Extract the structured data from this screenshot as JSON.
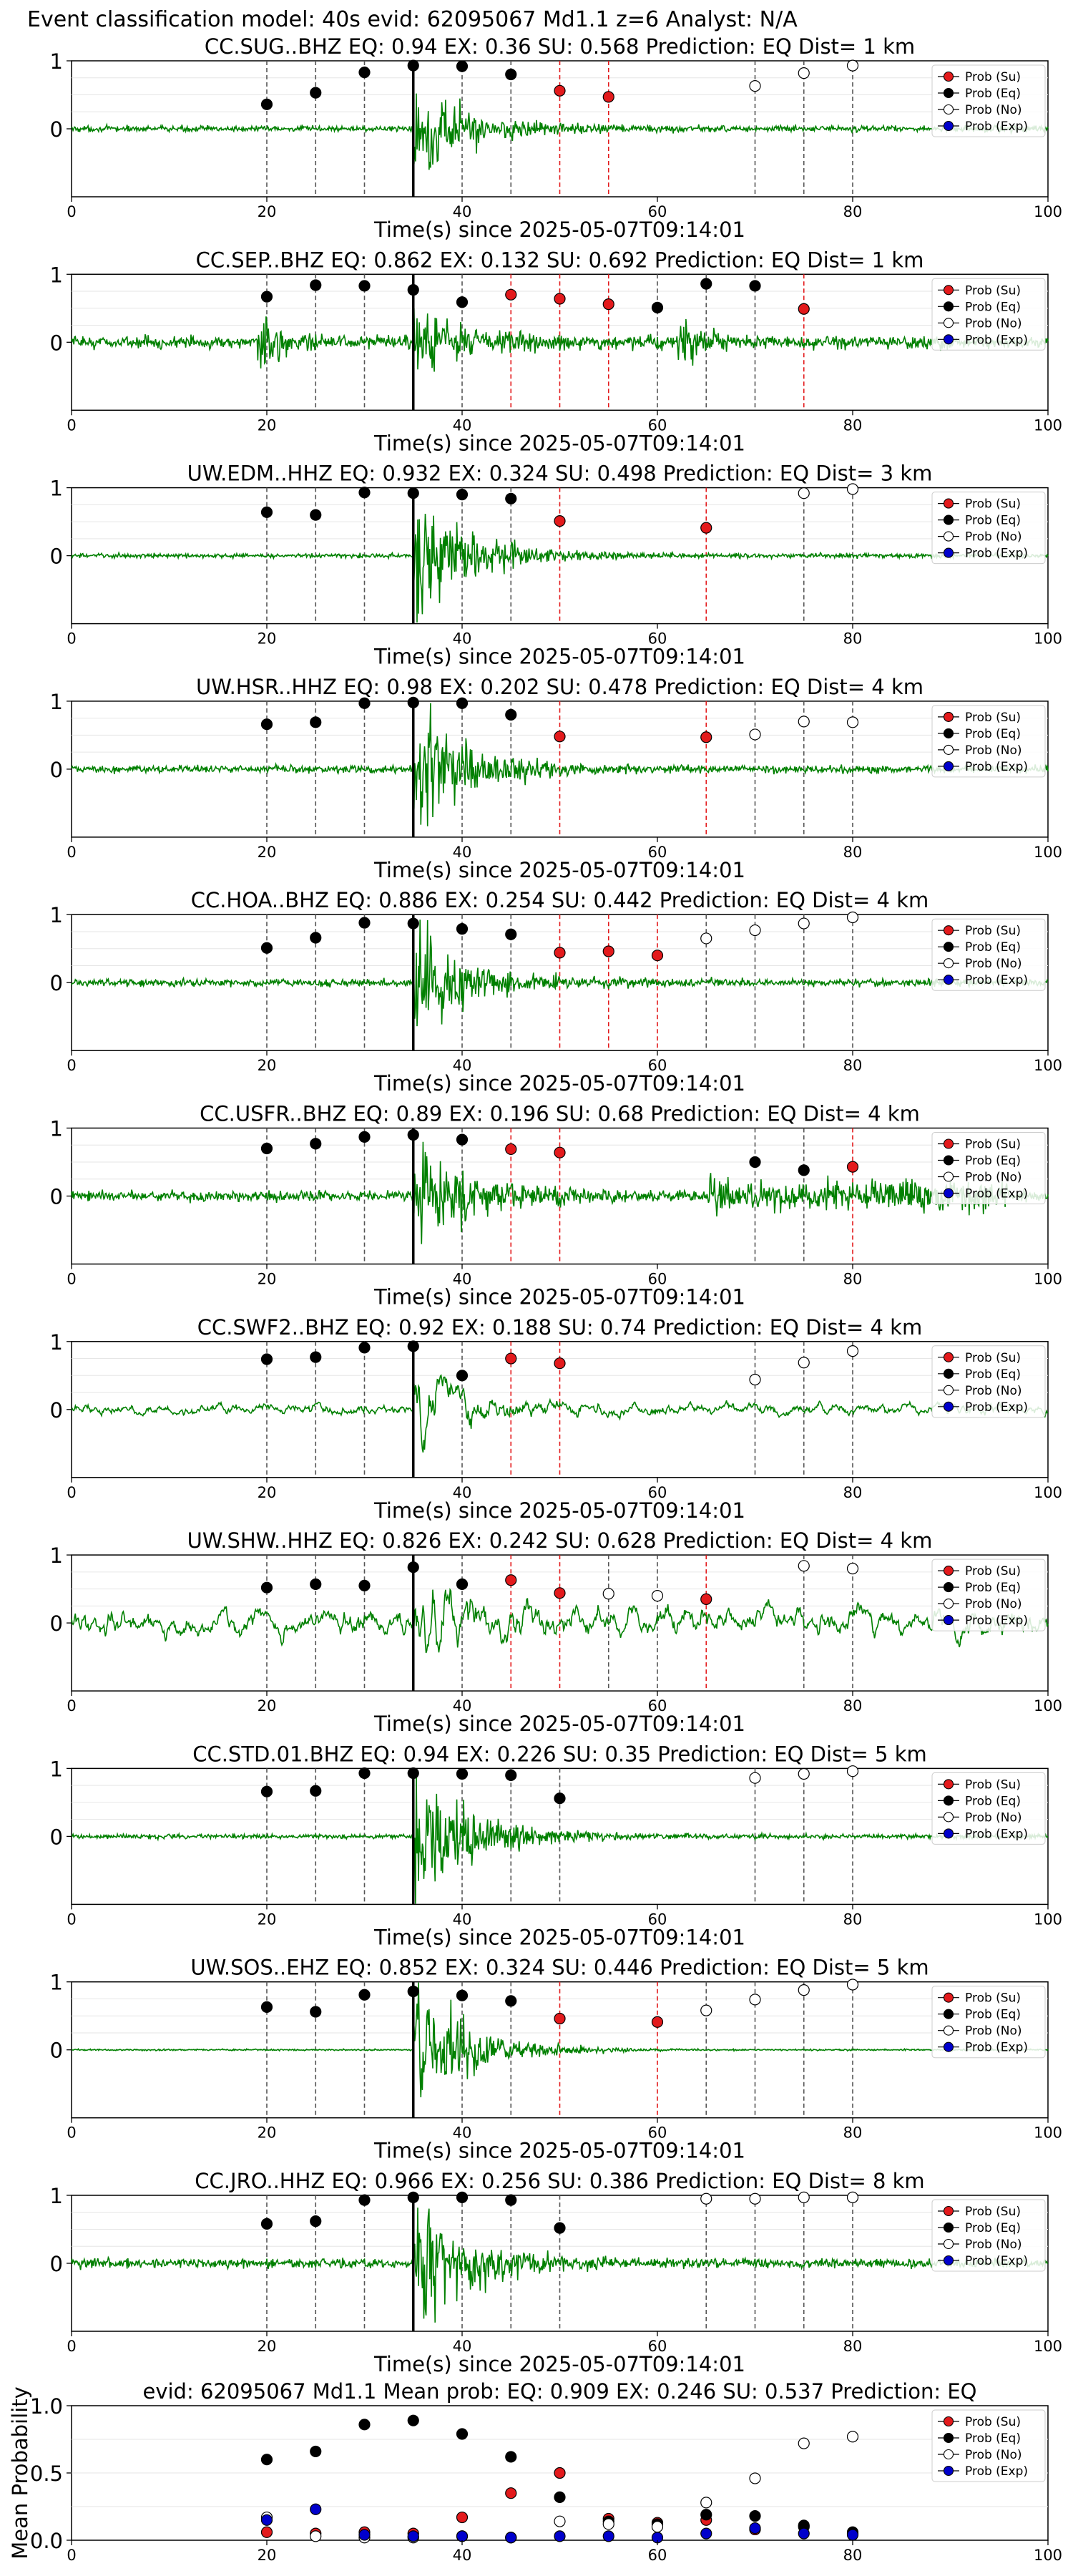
{
  "figure_title": "Event classification model: 40s evid: 62095067 Md1.1 z=6 Analyst: N/A",
  "legend_labels": [
    "Prob (Su)",
    "Prob (Eq)",
    "Prob (No)",
    "Prob (Exp)"
  ],
  "colors": {
    "waveform": "#008000",
    "su": "#e31a1c",
    "eq": "#000000",
    "no": "#ffffff",
    "exp": "#0000cc",
    "su_line": "#e31a1c",
    "eq_line": "#555555",
    "arrival": "#000000"
  },
  "xlabel": "Time(s) since 2025-05-07T09:14:01",
  "chart_data": [
    {
      "type": "scatter",
      "title": "CC.SUG..BHZ   EQ: 0.94  EX: 0.36  SU: 0.568   Prediction: EQ    Dist= 1 km",
      "xlim": [
        0,
        100
      ],
      "ylim": [
        -1,
        1
      ],
      "xticks": [
        0,
        20,
        40,
        60,
        80,
        100
      ],
      "yticks": [
        0,
        1
      ],
      "arrival": 35,
      "waveform_amp": 0.7,
      "noise_amp": 0.04,
      "points": [
        {
          "x": 20,
          "y": 0.36,
          "c": "eq"
        },
        {
          "x": 25,
          "y": 0.53,
          "c": "eq"
        },
        {
          "x": 30,
          "y": 0.83,
          "c": "eq"
        },
        {
          "x": 35,
          "y": 0.93,
          "c": "eq"
        },
        {
          "x": 40,
          "y": 0.92,
          "c": "eq"
        },
        {
          "x": 45,
          "y": 0.8,
          "c": "eq"
        },
        {
          "x": 50,
          "y": 0.56,
          "c": "su"
        },
        {
          "x": 55,
          "y": 0.47,
          "c": "su"
        },
        {
          "x": 70,
          "y": 0.63,
          "c": "no"
        },
        {
          "x": 75,
          "y": 0.82,
          "c": "no"
        },
        {
          "x": 80,
          "y": 0.93,
          "c": "no"
        }
      ]
    },
    {
      "type": "scatter",
      "title": "CC.SEP..BHZ   EQ: 0.862  EX: 0.132  SU: 0.692   Prediction: EQ    Dist= 1 km",
      "xlim": [
        0,
        100
      ],
      "ylim": [
        -1,
        1
      ],
      "xticks": [
        0,
        20,
        40,
        60,
        80,
        100
      ],
      "yticks": [
        0,
        1
      ],
      "arrival": 35,
      "waveform_amp": 0.55,
      "noise_amp": 0.08,
      "points": [
        {
          "x": 20,
          "y": 0.67,
          "c": "eq"
        },
        {
          "x": 25,
          "y": 0.84,
          "c": "eq"
        },
        {
          "x": 30,
          "y": 0.83,
          "c": "eq"
        },
        {
          "x": 35,
          "y": 0.77,
          "c": "eq"
        },
        {
          "x": 40,
          "y": 0.59,
          "c": "eq"
        },
        {
          "x": 45,
          "y": 0.7,
          "c": "su"
        },
        {
          "x": 50,
          "y": 0.64,
          "c": "su"
        },
        {
          "x": 55,
          "y": 0.56,
          "c": "su"
        },
        {
          "x": 60,
          "y": 0.51,
          "c": "eq"
        },
        {
          "x": 65,
          "y": 0.86,
          "c": "eq"
        },
        {
          "x": 70,
          "y": 0.83,
          "c": "eq"
        },
        {
          "x": 75,
          "y": 0.49,
          "c": "su"
        }
      ]
    },
    {
      "type": "scatter",
      "title": "UW.EDM..HHZ   EQ: 0.932  EX: 0.324  SU: 0.498   Prediction: EQ    Dist= 3 km",
      "xlim": [
        0,
        100
      ],
      "ylim": [
        -1,
        1
      ],
      "xticks": [
        0,
        20,
        40,
        60,
        80,
        100
      ],
      "yticks": [
        0,
        1
      ],
      "arrival": 35,
      "waveform_amp": 0.95,
      "noise_amp": 0.03,
      "points": [
        {
          "x": 20,
          "y": 0.64,
          "c": "eq"
        },
        {
          "x": 25,
          "y": 0.6,
          "c": "eq"
        },
        {
          "x": 30,
          "y": 0.93,
          "c": "eq"
        },
        {
          "x": 35,
          "y": 0.92,
          "c": "eq"
        },
        {
          "x": 40,
          "y": 0.9,
          "c": "eq"
        },
        {
          "x": 45,
          "y": 0.84,
          "c": "eq"
        },
        {
          "x": 50,
          "y": 0.51,
          "c": "su"
        },
        {
          "x": 65,
          "y": 0.41,
          "c": "su"
        },
        {
          "x": 75,
          "y": 0.92,
          "c": "no"
        },
        {
          "x": 80,
          "y": 0.98,
          "c": "no"
        }
      ]
    },
    {
      "type": "scatter",
      "title": "UW.HSR..HHZ   EQ: 0.98  EX: 0.202  SU: 0.478   Prediction: EQ    Dist= 4 km",
      "xlim": [
        0,
        100
      ],
      "ylim": [
        -1,
        1
      ],
      "xticks": [
        0,
        20,
        40,
        60,
        80,
        100
      ],
      "yticks": [
        0,
        1
      ],
      "arrival": 35,
      "waveform_amp": 0.85,
      "noise_amp": 0.05,
      "points": [
        {
          "x": 20,
          "y": 0.66,
          "c": "eq"
        },
        {
          "x": 25,
          "y": 0.69,
          "c": "eq"
        },
        {
          "x": 30,
          "y": 0.97,
          "c": "eq"
        },
        {
          "x": 35,
          "y": 0.98,
          "c": "eq"
        },
        {
          "x": 40,
          "y": 0.97,
          "c": "eq"
        },
        {
          "x": 45,
          "y": 0.8,
          "c": "eq"
        },
        {
          "x": 50,
          "y": 0.48,
          "c": "su"
        },
        {
          "x": 65,
          "y": 0.47,
          "c": "su"
        },
        {
          "x": 70,
          "y": 0.51,
          "c": "no"
        },
        {
          "x": 75,
          "y": 0.7,
          "c": "no"
        },
        {
          "x": 80,
          "y": 0.69,
          "c": "no"
        }
      ]
    },
    {
      "type": "scatter",
      "title": "CC.HOA..BHZ   EQ: 0.886  EX: 0.254  SU: 0.442   Prediction: EQ    Dist= 4 km",
      "xlim": [
        0,
        100
      ],
      "ylim": [
        -1,
        1
      ],
      "xticks": [
        0,
        20,
        40,
        60,
        80,
        100
      ],
      "yticks": [
        0,
        1
      ],
      "arrival": 35,
      "waveform_amp": 0.8,
      "noise_amp": 0.05,
      "points": [
        {
          "x": 20,
          "y": 0.51,
          "c": "eq"
        },
        {
          "x": 25,
          "y": 0.66,
          "c": "eq"
        },
        {
          "x": 30,
          "y": 0.88,
          "c": "eq"
        },
        {
          "x": 35,
          "y": 0.87,
          "c": "eq"
        },
        {
          "x": 40,
          "y": 0.79,
          "c": "eq"
        },
        {
          "x": 45,
          "y": 0.71,
          "c": "eq"
        },
        {
          "x": 50,
          "y": 0.44,
          "c": "su"
        },
        {
          "x": 55,
          "y": 0.46,
          "c": "su"
        },
        {
          "x": 60,
          "y": 0.4,
          "c": "su"
        },
        {
          "x": 65,
          "y": 0.65,
          "c": "no"
        },
        {
          "x": 70,
          "y": 0.77,
          "c": "no"
        },
        {
          "x": 75,
          "y": 0.87,
          "c": "no"
        },
        {
          "x": 80,
          "y": 0.96,
          "c": "no"
        }
      ]
    },
    {
      "type": "scatter",
      "title": "CC.USFR..BHZ   EQ: 0.89  EX: 0.196  SU: 0.68   Prediction: EQ    Dist= 4 km",
      "xlim": [
        0,
        100
      ],
      "ylim": [
        -1,
        1
      ],
      "xticks": [
        0,
        20,
        40,
        60,
        80,
        100
      ],
      "yticks": [
        0,
        1
      ],
      "arrival": 35,
      "waveform_amp": 0.75,
      "noise_amp": 0.07,
      "points": [
        {
          "x": 20,
          "y": 0.7,
          "c": "eq"
        },
        {
          "x": 25,
          "y": 0.77,
          "c": "eq"
        },
        {
          "x": 30,
          "y": 0.87,
          "c": "eq"
        },
        {
          "x": 35,
          "y": 0.9,
          "c": "eq"
        },
        {
          "x": 40,
          "y": 0.83,
          "c": "eq"
        },
        {
          "x": 45,
          "y": 0.69,
          "c": "su"
        },
        {
          "x": 50,
          "y": 0.64,
          "c": "su"
        },
        {
          "x": 70,
          "y": 0.5,
          "c": "eq"
        },
        {
          "x": 75,
          "y": 0.38,
          "c": "eq"
        },
        {
          "x": 80,
          "y": 0.43,
          "c": "su"
        }
      ]
    },
    {
      "type": "scatter",
      "title": "CC.SWF2..BHZ   EQ: 0.92  EX: 0.188  SU: 0.74   Prediction: EQ    Dist= 4 km",
      "xlim": [
        0,
        100
      ],
      "ylim": [
        -1,
        1
      ],
      "xticks": [
        0,
        20,
        40,
        60,
        80,
        100
      ],
      "yticks": [
        0,
        1
      ],
      "arrival": 35,
      "waveform_amp": 0.8,
      "noise_amp": 0.12,
      "points": [
        {
          "x": 20,
          "y": 0.74,
          "c": "eq"
        },
        {
          "x": 25,
          "y": 0.77,
          "c": "eq"
        },
        {
          "x": 30,
          "y": 0.91,
          "c": "eq"
        },
        {
          "x": 35,
          "y": 0.93,
          "c": "eq"
        },
        {
          "x": 40,
          "y": 0.5,
          "c": "eq"
        },
        {
          "x": 45,
          "y": 0.75,
          "c": "su"
        },
        {
          "x": 50,
          "y": 0.68,
          "c": "su"
        },
        {
          "x": 70,
          "y": 0.44,
          "c": "no"
        },
        {
          "x": 75,
          "y": 0.69,
          "c": "no"
        },
        {
          "x": 80,
          "y": 0.86,
          "c": "no"
        }
      ]
    },
    {
      "type": "scatter",
      "title": "UW.SHW..HHZ   EQ: 0.826  EX: 0.242  SU: 0.628   Prediction: EQ    Dist= 4 km",
      "xlim": [
        0,
        100
      ],
      "ylim": [
        -1,
        1
      ],
      "xticks": [
        0,
        20,
        40,
        60,
        80,
        100
      ],
      "yticks": [
        0,
        1
      ],
      "arrival": 35,
      "waveform_amp": 0.6,
      "noise_amp": 0.28,
      "points": [
        {
          "x": 20,
          "y": 0.52,
          "c": "eq"
        },
        {
          "x": 25,
          "y": 0.57,
          "c": "eq"
        },
        {
          "x": 30,
          "y": 0.55,
          "c": "eq"
        },
        {
          "x": 35,
          "y": 0.82,
          "c": "eq"
        },
        {
          "x": 40,
          "y": 0.57,
          "c": "eq"
        },
        {
          "x": 45,
          "y": 0.63,
          "c": "su"
        },
        {
          "x": 50,
          "y": 0.44,
          "c": "su"
        },
        {
          "x": 55,
          "y": 0.43,
          "c": "no"
        },
        {
          "x": 60,
          "y": 0.4,
          "c": "no"
        },
        {
          "x": 65,
          "y": 0.35,
          "c": "su"
        },
        {
          "x": 75,
          "y": 0.84,
          "c": "no"
        },
        {
          "x": 80,
          "y": 0.8,
          "c": "no"
        }
      ]
    },
    {
      "type": "scatter",
      "title": "CC.STD.01.BHZ   EQ: 0.94  EX: 0.226  SU: 0.35   Prediction: EQ    Dist= 5 km",
      "xlim": [
        0,
        100
      ],
      "ylim": [
        -1,
        1
      ],
      "xticks": [
        0,
        20,
        40,
        60,
        80,
        100
      ],
      "yticks": [
        0,
        1
      ],
      "arrival": 35,
      "waveform_amp": 0.95,
      "noise_amp": 0.03,
      "points": [
        {
          "x": 20,
          "y": 0.66,
          "c": "eq"
        },
        {
          "x": 25,
          "y": 0.67,
          "c": "eq"
        },
        {
          "x": 30,
          "y": 0.93,
          "c": "eq"
        },
        {
          "x": 35,
          "y": 0.93,
          "c": "eq"
        },
        {
          "x": 40,
          "y": 0.92,
          "c": "eq"
        },
        {
          "x": 45,
          "y": 0.9,
          "c": "eq"
        },
        {
          "x": 50,
          "y": 0.56,
          "c": "eq"
        },
        {
          "x": 70,
          "y": 0.86,
          "c": "no"
        },
        {
          "x": 75,
          "y": 0.92,
          "c": "no"
        },
        {
          "x": 80,
          "y": 0.96,
          "c": "no"
        }
      ]
    },
    {
      "type": "scatter",
      "title": "UW.SOS..EHZ   EQ: 0.852  EX: 0.324  SU: 0.446   Prediction: EQ    Dist= 5 km",
      "xlim": [
        0,
        100
      ],
      "ylim": [
        -1,
        1
      ],
      "xticks": [
        0,
        20,
        40,
        60,
        80,
        100
      ],
      "yticks": [
        0,
        1
      ],
      "arrival": 35,
      "waveform_amp": 0.95,
      "noise_amp": 0.01,
      "points": [
        {
          "x": 20,
          "y": 0.63,
          "c": "eq"
        },
        {
          "x": 25,
          "y": 0.56,
          "c": "eq"
        },
        {
          "x": 30,
          "y": 0.81,
          "c": "eq"
        },
        {
          "x": 35,
          "y": 0.86,
          "c": "eq"
        },
        {
          "x": 40,
          "y": 0.8,
          "c": "eq"
        },
        {
          "x": 45,
          "y": 0.72,
          "c": "eq"
        },
        {
          "x": 50,
          "y": 0.46,
          "c": "su"
        },
        {
          "x": 60,
          "y": 0.41,
          "c": "su"
        },
        {
          "x": 65,
          "y": 0.58,
          "c": "no"
        },
        {
          "x": 70,
          "y": 0.74,
          "c": "no"
        },
        {
          "x": 75,
          "y": 0.88,
          "c": "no"
        },
        {
          "x": 80,
          "y": 0.96,
          "c": "no"
        }
      ]
    },
    {
      "type": "scatter",
      "title": "CC.JRO..HHZ   EQ: 0.966  EX: 0.256  SU: 0.386   Prediction: EQ    Dist= 8 km",
      "xlim": [
        0,
        100
      ],
      "ylim": [
        -1,
        1
      ],
      "xticks": [
        0,
        20,
        40,
        60,
        80,
        100
      ],
      "yticks": [
        0,
        1
      ],
      "arrival": 35,
      "waveform_amp": 0.95,
      "noise_amp": 0.06,
      "points": [
        {
          "x": 20,
          "y": 0.58,
          "c": "eq"
        },
        {
          "x": 25,
          "y": 0.62,
          "c": "eq"
        },
        {
          "x": 30,
          "y": 0.93,
          "c": "eq"
        },
        {
          "x": 35,
          "y": 0.97,
          "c": "eq"
        },
        {
          "x": 40,
          "y": 0.97,
          "c": "eq"
        },
        {
          "x": 45,
          "y": 0.93,
          "c": "eq"
        },
        {
          "x": 50,
          "y": 0.52,
          "c": "eq"
        },
        {
          "x": 65,
          "y": 0.95,
          "c": "no"
        },
        {
          "x": 70,
          "y": 0.95,
          "c": "no"
        },
        {
          "x": 75,
          "y": 0.97,
          "c": "no"
        },
        {
          "x": 80,
          "y": 0.97,
          "c": "no"
        }
      ]
    },
    {
      "type": "scatter",
      "title": "evid: 62095067  Md1.1   Mean prob:   EQ: 0.909  EX: 0.246  SU: 0.537   Prediction: EQ",
      "ylabel": "Mean Probability",
      "xlim": [
        0,
        100
      ],
      "ylim": [
        0,
        1
      ],
      "xticks": [
        0,
        20,
        40,
        60,
        80,
        100
      ],
      "yticks": [
        0.0,
        0.5,
        1.0
      ],
      "series": [
        {
          "name": "Prob (Su)",
          "x": [
            20,
            25,
            30,
            35,
            40,
            45,
            50,
            55,
            60,
            65,
            70,
            75,
            80
          ],
          "y": [
            0.06,
            0.05,
            0.06,
            0.05,
            0.17,
            0.35,
            0.5,
            0.16,
            0.13,
            0.15,
            0.08,
            0.1,
            0.05
          ]
        },
        {
          "name": "Prob (Eq)",
          "x": [
            20,
            25,
            30,
            35,
            40,
            45,
            50,
            55,
            60,
            65,
            70,
            75,
            80
          ],
          "y": [
            0.6,
            0.66,
            0.86,
            0.89,
            0.79,
            0.62,
            0.32,
            0.14,
            0.12,
            0.19,
            0.18,
            0.11,
            0.06
          ]
        },
        {
          "name": "Prob (No)",
          "x": [
            20,
            25,
            30,
            35,
            40,
            45,
            50,
            55,
            60,
            65,
            70,
            75,
            80
          ],
          "y": [
            0.17,
            0.03,
            0.02,
            0.02,
            0.03,
            0.02,
            0.14,
            0.12,
            0.1,
            0.28,
            0.46,
            0.72,
            0.77
          ]
        },
        {
          "name": "Prob (Exp)",
          "x": [
            20,
            25,
            30,
            35,
            40,
            45,
            50,
            55,
            60,
            65,
            70,
            75,
            80
          ],
          "y": [
            0.15,
            0.23,
            0.04,
            0.03,
            0.03,
            0.02,
            0.03,
            0.03,
            0.02,
            0.05,
            0.09,
            0.05,
            0.04
          ]
        }
      ]
    }
  ]
}
